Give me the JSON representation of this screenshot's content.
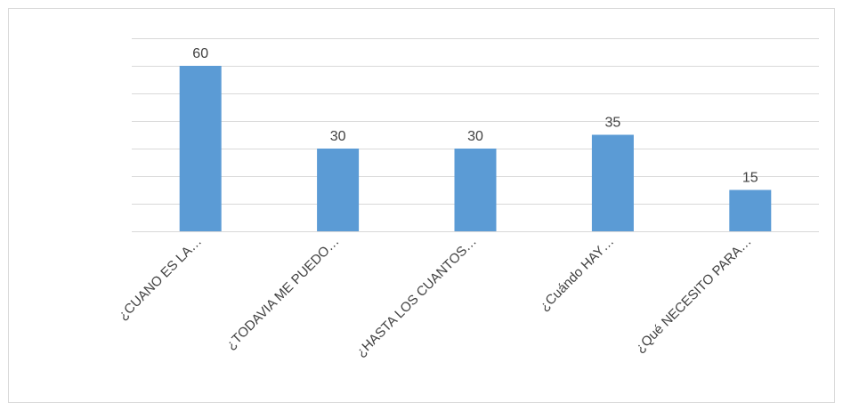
{
  "chart_data": {
    "type": "bar",
    "categories": [
      "¿CUANO ES LA…",
      "¿TODAVIA ME PUEDO…",
      "¿HASTA LOS CUANTOS…",
      "¿Cuándo HAY…",
      "¿Qué NECESITO PARA…"
    ],
    "values": [
      60,
      30,
      30,
      35,
      15
    ],
    "data_labels": [
      "60",
      "30",
      "30",
      "35",
      "15"
    ],
    "ylim": [
      0,
      70
    ],
    "y_major_unit": 10,
    "y_axis_labels_visible": false,
    "grid": true,
    "legend": "none",
    "bar_color": "#5b9bd5",
    "gridline_color": "#d9d9d9",
    "text_color": "#404040",
    "xtick_rotation_deg": -45
  }
}
